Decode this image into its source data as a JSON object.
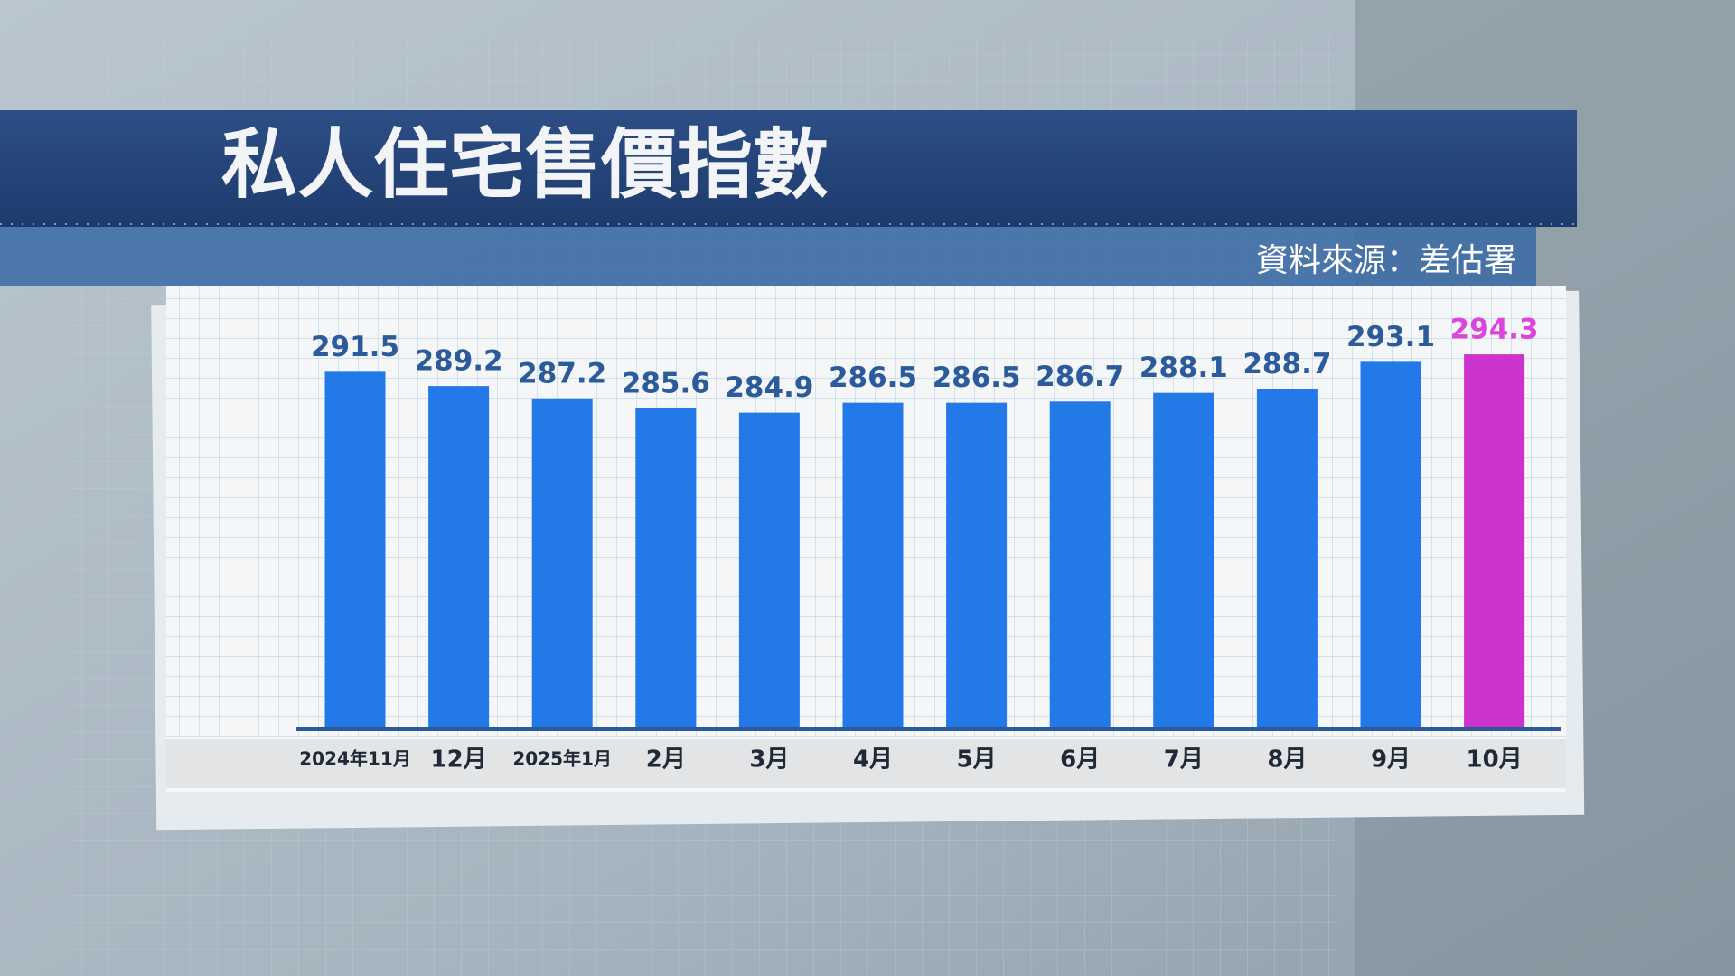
{
  "chart_data": {
    "type": "bar",
    "title": "私人住宅售價指數",
    "source": "資料來源：差估署",
    "categories": [
      "2024年11月",
      "12月",
      "2025年1月",
      "2月",
      "3月",
      "4月",
      "5月",
      "6月",
      "7月",
      "8月",
      "9月",
      "10月"
    ],
    "values": [
      291.5,
      289.2,
      287.2,
      285.6,
      284.9,
      286.5,
      286.5,
      286.7,
      288.1,
      288.7,
      293.1,
      294.3
    ],
    "colors": [
      "#2379e8",
      "#2379e8",
      "#2379e8",
      "#2379e8",
      "#2379e8",
      "#2379e8",
      "#2379e8",
      "#2379e8",
      "#2379e8",
      "#2379e8",
      "#2379e8",
      "#cc33cc"
    ],
    "label_colors": [
      "#2c5b9c",
      "#2c5b9c",
      "#2c5b9c",
      "#2c5b9c",
      "#2c5b9c",
      "#2c5b9c",
      "#2c5b9c",
      "#2c5b9c",
      "#2c5b9c",
      "#2c5b9c",
      "#2c5b9c",
      "#dd44dd"
    ],
    "ylim": [
      234,
      300
    ]
  }
}
